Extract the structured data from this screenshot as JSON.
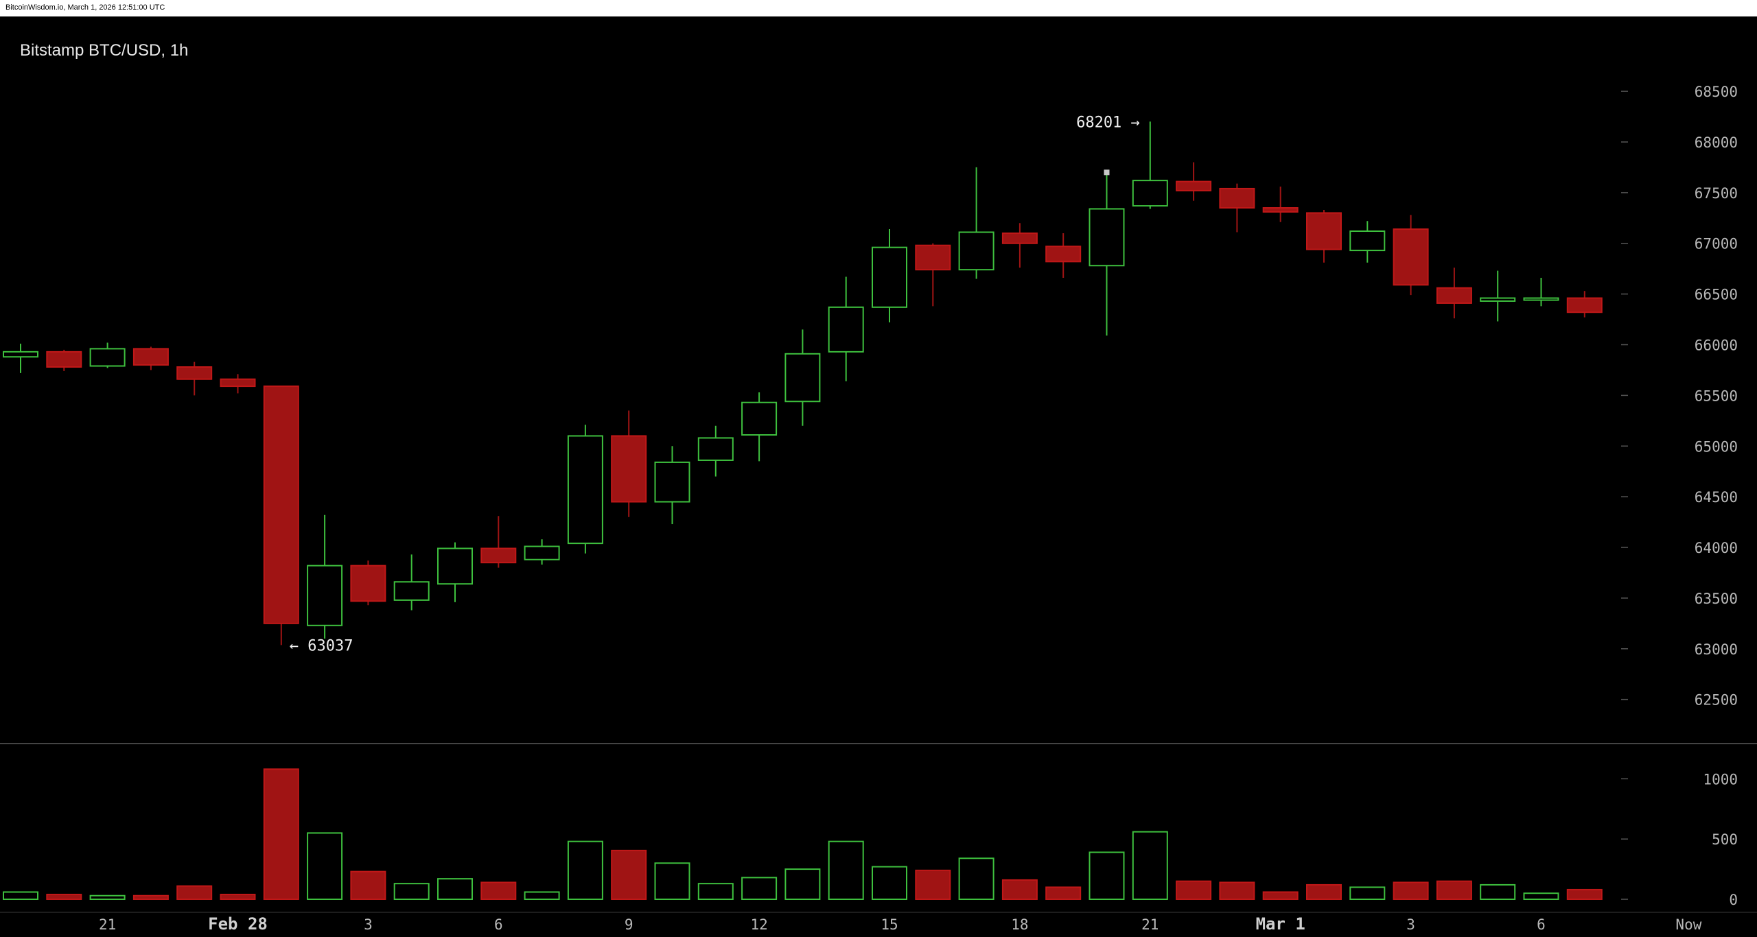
{
  "header": {
    "timestamp": "BitcoinWisdom.io, March 1, 2026 12:51:00 UTC"
  },
  "chart_data": {
    "type": "candlestick",
    "title": "Bitstamp BTC/USD, 1h",
    "ylim": [
      62200,
      68900
    ],
    "yticks": [
      62500,
      63000,
      63500,
      64000,
      64500,
      65000,
      65500,
      66000,
      66500,
      67000,
      67500,
      68000,
      68500
    ],
    "volume_ylim": [
      0,
      1150
    ],
    "volume_yticks": [
      0,
      500,
      1000
    ],
    "xticks": [
      {
        "label": "21",
        "index": 2,
        "major": false
      },
      {
        "label": "Feb 28",
        "index": 5,
        "major": true
      },
      {
        "label": "3",
        "index": 8,
        "major": false
      },
      {
        "label": "6",
        "index": 11,
        "major": false
      },
      {
        "label": "9",
        "index": 14,
        "major": false
      },
      {
        "label": "12",
        "index": 17,
        "major": false
      },
      {
        "label": "15",
        "index": 20,
        "major": false
      },
      {
        "label": "18",
        "index": 23,
        "major": false
      },
      {
        "label": "21",
        "index": 26,
        "major": false
      },
      {
        "label": "Mar 1",
        "index": 29,
        "major": true
      },
      {
        "label": "3",
        "index": 32,
        "major": false
      },
      {
        "label": "6",
        "index": 35,
        "major": false
      },
      {
        "label": "Now",
        "index": 38,
        "major": false
      }
    ],
    "annotations": {
      "high": {
        "value": 68201,
        "text": "68201 →",
        "index": 26
      },
      "low": {
        "value": 63037,
        "text": "← 63037",
        "index": 6
      }
    },
    "candles": [
      {
        "o": 65880,
        "h": 66010,
        "l": 65720,
        "c": 65930,
        "v": 60
      },
      {
        "o": 65930,
        "h": 65950,
        "l": 65740,
        "c": 65780,
        "v": 40
      },
      {
        "o": 65790,
        "h": 66020,
        "l": 65770,
        "c": 65960,
        "v": 30
      },
      {
        "o": 65960,
        "h": 65980,
        "l": 65750,
        "c": 65800,
        "v": 30
      },
      {
        "o": 65780,
        "h": 65830,
        "l": 65500,
        "c": 65660,
        "v": 110
      },
      {
        "o": 65660,
        "h": 65710,
        "l": 65520,
        "c": 65590,
        "v": 40
      },
      {
        "o": 65590,
        "h": 65590,
        "l": 63037,
        "c": 63250,
        "v": 1080
      },
      {
        "o": 63230,
        "h": 64320,
        "l": 63100,
        "c": 63820,
        "v": 550
      },
      {
        "o": 63820,
        "h": 63870,
        "l": 63430,
        "c": 63470,
        "v": 230
      },
      {
        "o": 63480,
        "h": 63930,
        "l": 63380,
        "c": 63660,
        "v": 130
      },
      {
        "o": 63640,
        "h": 64050,
        "l": 63460,
        "c": 63990,
        "v": 170
      },
      {
        "o": 63990,
        "h": 64310,
        "l": 63800,
        "c": 63850,
        "v": 140
      },
      {
        "o": 63880,
        "h": 64080,
        "l": 63830,
        "c": 64010,
        "v": 60
      },
      {
        "o": 64040,
        "h": 65210,
        "l": 63940,
        "c": 65100,
        "v": 480
      },
      {
        "o": 65100,
        "h": 65350,
        "l": 64300,
        "c": 64450,
        "v": 405
      },
      {
        "o": 64450,
        "h": 65000,
        "l": 64230,
        "c": 64840,
        "v": 300
      },
      {
        "o": 64860,
        "h": 65200,
        "l": 64700,
        "c": 65080,
        "v": 130
      },
      {
        "o": 65110,
        "h": 65530,
        "l": 64850,
        "c": 65430,
        "v": 180
      },
      {
        "o": 65440,
        "h": 66150,
        "l": 65200,
        "c": 65910,
        "v": 250
      },
      {
        "o": 65930,
        "h": 66670,
        "l": 65640,
        "c": 66370,
        "v": 480
      },
      {
        "o": 66370,
        "h": 67140,
        "l": 66220,
        "c": 66960,
        "v": 270
      },
      {
        "o": 66980,
        "h": 67000,
        "l": 66380,
        "c": 66740,
        "v": 240
      },
      {
        "o": 66740,
        "h": 67750,
        "l": 66650,
        "c": 67110,
        "v": 340
      },
      {
        "o": 67100,
        "h": 67200,
        "l": 66760,
        "c": 67000,
        "v": 160
      },
      {
        "o": 66970,
        "h": 67100,
        "l": 66660,
        "c": 66820,
        "v": 100
      },
      {
        "o": 66780,
        "h": 67700,
        "l": 66090,
        "c": 67340,
        "v": 390
      },
      {
        "o": 67370,
        "h": 68201,
        "l": 67340,
        "c": 67620,
        "v": 560
      },
      {
        "o": 67610,
        "h": 67800,
        "l": 67420,
        "c": 67520,
        "v": 150
      },
      {
        "o": 67540,
        "h": 67590,
        "l": 67110,
        "c": 67350,
        "v": 140
      },
      {
        "o": 67350,
        "h": 67560,
        "l": 67210,
        "c": 67310,
        "v": 60
      },
      {
        "o": 67300,
        "h": 67330,
        "l": 66810,
        "c": 66940,
        "v": 120
      },
      {
        "o": 66930,
        "h": 67220,
        "l": 66810,
        "c": 67120,
        "v": 100
      },
      {
        "o": 67140,
        "h": 67280,
        "l": 66490,
        "c": 66590,
        "v": 140
      },
      {
        "o": 66560,
        "h": 66760,
        "l": 66260,
        "c": 66410,
        "v": 150
      },
      {
        "o": 66430,
        "h": 66730,
        "l": 66230,
        "c": 66460,
        "v": 120
      },
      {
        "o": 66450,
        "h": 66660,
        "l": 66380,
        "c": 66460,
        "v": 50
      },
      {
        "o": 66460,
        "h": 66530,
        "l": 66270,
        "c": 66320,
        "v": 80
      }
    ],
    "colors": {
      "up": "#3ec03e",
      "down": "#a01414",
      "grid": "#555555",
      "axis_text": "#b9b9b9"
    }
  }
}
